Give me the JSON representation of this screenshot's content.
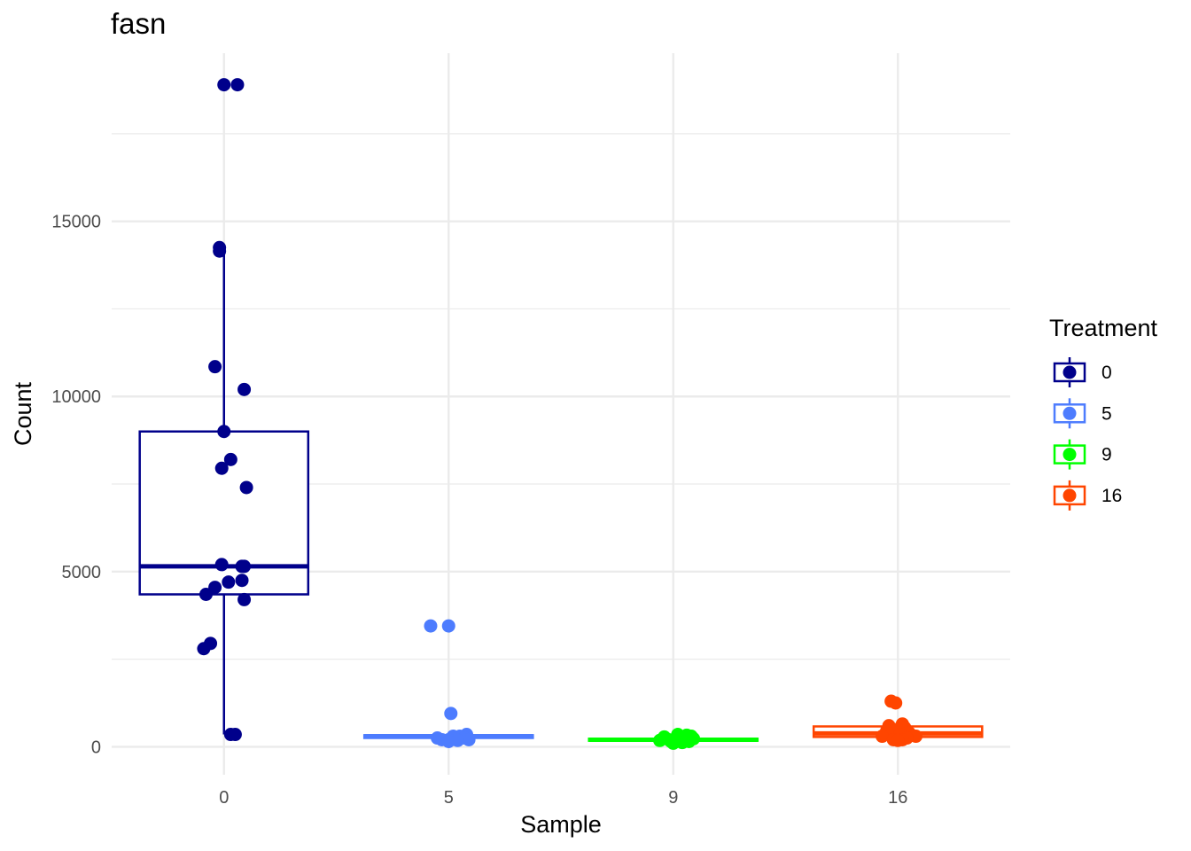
{
  "chart_data": {
    "type": "box",
    "title": "fasn",
    "xlabel": "Sample",
    "ylabel": "Count",
    "categories": [
      "0",
      "5",
      "9",
      "16"
    ],
    "y_ticks": [
      0,
      5000,
      10000,
      15000
    ],
    "y_ticks_labels": [
      "0",
      "5000",
      "10000",
      "15000"
    ],
    "ylim": [
      -800,
      19800
    ],
    "grid": true,
    "legend": {
      "title": "Treatment",
      "placement": "right",
      "entries": [
        "0",
        "5",
        "9",
        "16"
      ]
    },
    "colors": [
      "#00008B",
      "#4D7CFE",
      "#00FF00",
      "#FF4500"
    ],
    "boxes": [
      {
        "category": "0",
        "whisker_low": 350,
        "q1": 4350,
        "median": 5150,
        "q3": 9000,
        "whisker_high": 14200
      },
      {
        "category": "5",
        "whisker_low": 200,
        "q1": 250,
        "median": 300,
        "q3": 330,
        "whisker_high": 380
      },
      {
        "category": "9",
        "whisker_low": 120,
        "q1": 170,
        "median": 200,
        "q3": 230,
        "whisker_high": 280
      },
      {
        "category": "16",
        "whisker_low": 200,
        "q1": 280,
        "median": 380,
        "q3": 580,
        "whisker_high": 700
      }
    ],
    "points": [
      {
        "category": "0",
        "values": [
          18900,
          18900,
          14250,
          14150,
          10850,
          10200,
          9000,
          8200,
          7950,
          7400,
          5200,
          5150,
          5150,
          4750,
          4700,
          4550,
          4350,
          4200,
          2950,
          2800,
          350,
          350
        ],
        "jitter": [
          0.0,
          0.06,
          -0.02,
          -0.02,
          -0.04,
          0.09,
          0.0,
          0.03,
          -0.01,
          0.1,
          -0.01,
          0.08,
          0.09,
          0.08,
          0.02,
          -0.04,
          -0.08,
          0.09,
          -0.06,
          -0.09,
          0.03,
          0.05
        ]
      },
      {
        "category": "5",
        "values": [
          3450,
          3450,
          950,
          350,
          300,
          300,
          250,
          250,
          200,
          200,
          200,
          180,
          150
        ],
        "jitter": [
          -0.08,
          0.0,
          0.01,
          0.08,
          0.02,
          0.05,
          -0.05,
          0.07,
          0.0,
          -0.03,
          0.09,
          0.04,
          0.0
        ]
      },
      {
        "category": "9",
        "values": [
          350,
          330,
          300,
          280,
          250,
          230,
          200,
          200,
          180,
          150,
          150,
          120,
          100
        ],
        "jitter": [
          0.02,
          0.06,
          0.08,
          -0.04,
          0.03,
          0.09,
          -0.02,
          0.05,
          -0.06,
          -0.01,
          0.07,
          0.04,
          0.0
        ]
      },
      {
        "category": "16",
        "values": [
          1300,
          1250,
          650,
          600,
          550,
          500,
          450,
          400,
          350,
          300,
          300,
          250,
          200,
          200,
          180
        ],
        "jitter": [
          -0.03,
          -0.01,
          0.02,
          -0.04,
          0.03,
          0.0,
          -0.05,
          0.05,
          0.01,
          0.08,
          -0.07,
          0.04,
          -0.02,
          0.02,
          0.0
        ]
      }
    ]
  }
}
